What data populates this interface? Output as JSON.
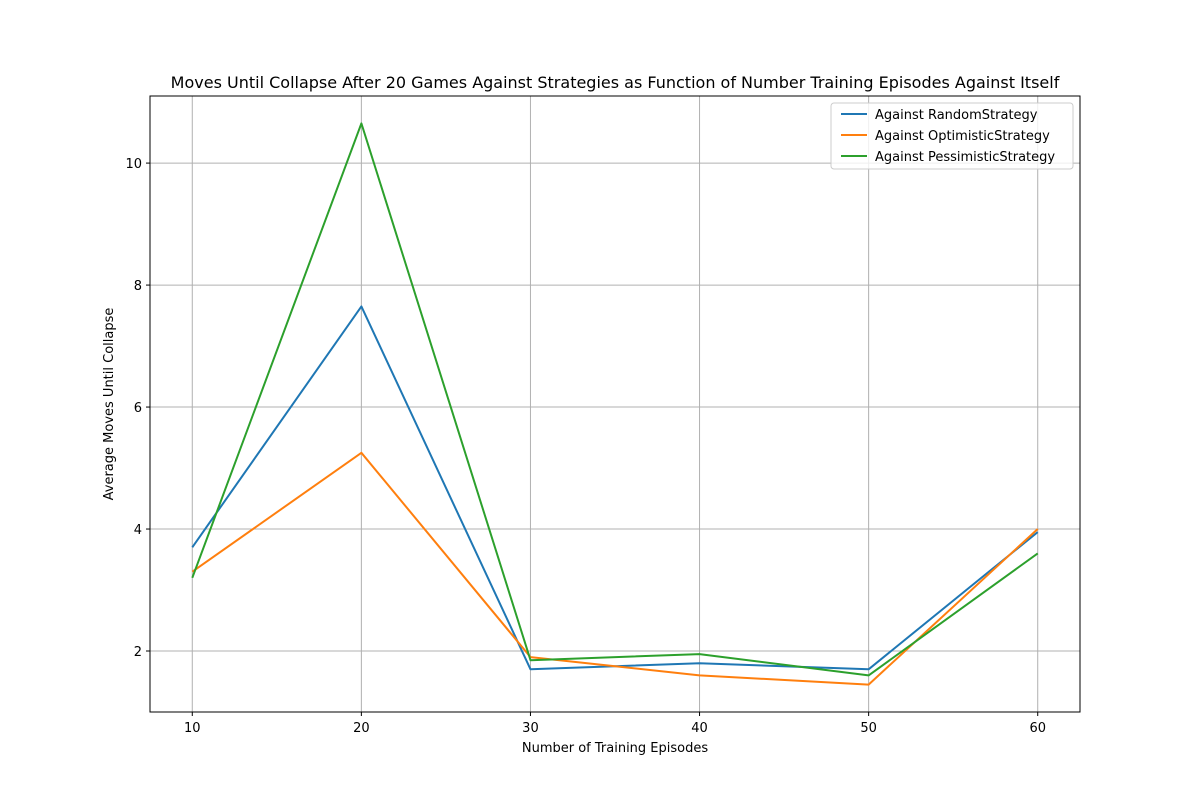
{
  "chart_data": {
    "type": "line",
    "title": "Moves Until Collapse After 20 Games Against Strategies as Function of Number Training Episodes Against Itself",
    "xlabel": "Number of Training Episodes",
    "ylabel": "Average Moves Until Collapse",
    "x": [
      10,
      20,
      30,
      40,
      50,
      60
    ],
    "xlim": [
      7.5,
      62.5
    ],
    "ylim": [
      1.0,
      11.1
    ],
    "x_ticks": [
      10,
      20,
      30,
      40,
      50,
      60
    ],
    "y_ticks": [
      2,
      4,
      6,
      8,
      10
    ],
    "grid": true,
    "legend_position": "top-right",
    "series": [
      {
        "name": "Against RandomStrategy",
        "color": "#1f77b4",
        "values": [
          3.7,
          7.65,
          1.7,
          1.8,
          1.7,
          3.95
        ]
      },
      {
        "name": "Against OptimisticStrategy",
        "color": "#ff7f0e",
        "values": [
          3.3,
          5.25,
          1.9,
          1.6,
          1.45,
          4.0
        ]
      },
      {
        "name": "Against PessimisticStrategy",
        "color": "#2ca02c",
        "values": [
          3.2,
          10.65,
          1.85,
          1.95,
          1.6,
          3.6
        ]
      }
    ]
  }
}
